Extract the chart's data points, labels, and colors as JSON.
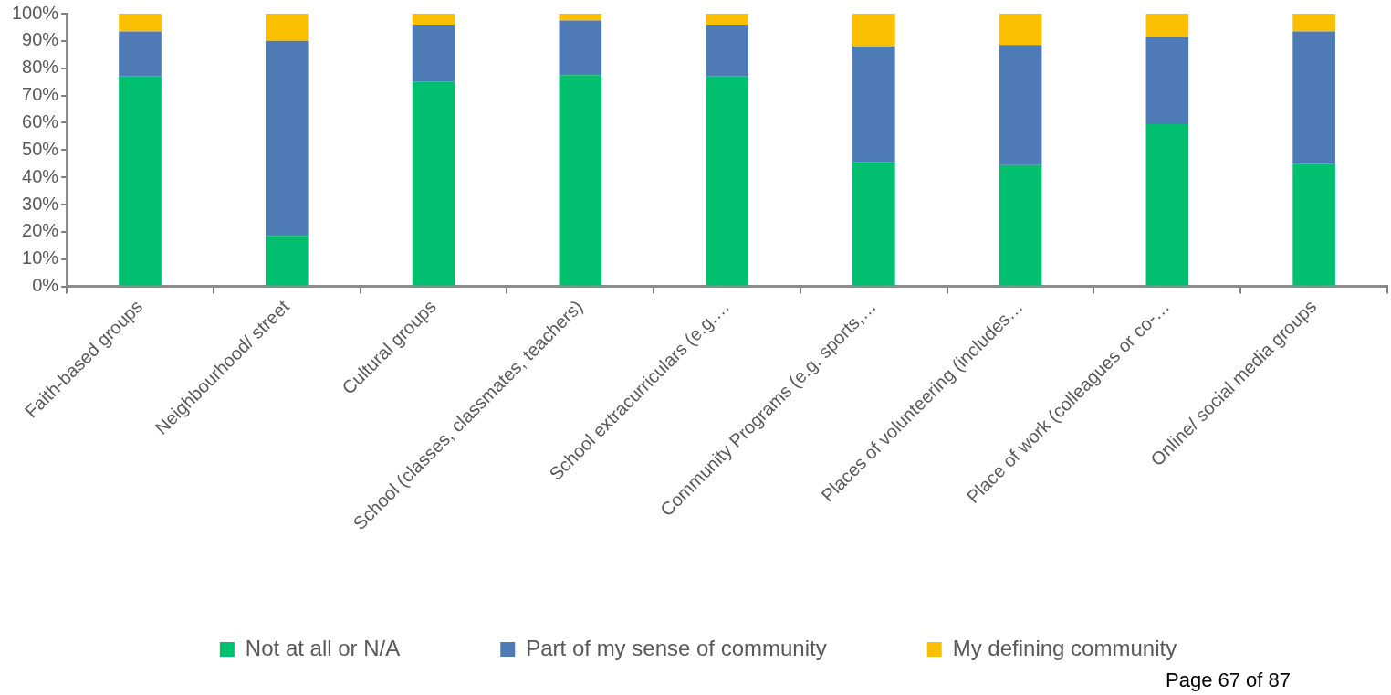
{
  "chart_data": {
    "type": "bar",
    "stacked": true,
    "categories": [
      "Faith-based groups",
      "Neighbourhood/ street",
      "Cultural groups",
      "School (classes, classmates, teachers)",
      "School extracurriculars (e.g.…",
      "Community Programs (e.g. sports,…",
      "Places of volunteering (includes…",
      "Place of work (colleagues or co-…",
      "Online/ social media groups"
    ],
    "series": [
      {
        "name": "Not at all or N/A",
        "color": "#00bf6f",
        "values": [
          77,
          18.5,
          75,
          77.5,
          77,
          45.5,
          44.5,
          59.5,
          45
        ]
      },
      {
        "name": "Part of my sense of community",
        "color": "#4e7ab5",
        "values": [
          16.5,
          71.5,
          21,
          20,
          19,
          42.5,
          44,
          32,
          48.5
        ]
      },
      {
        "name": "My defining community",
        "color": "#f9bf00",
        "values": [
          6.5,
          10,
          4,
          2.5,
          4,
          12,
          11.5,
          8.5,
          6.5
        ]
      }
    ],
    "ylim": [
      0,
      100
    ],
    "yticks": [
      {
        "value": 0,
        "label": "0%"
      },
      {
        "value": 10,
        "label": "10%"
      },
      {
        "value": 20,
        "label": "20%"
      },
      {
        "value": 30,
        "label": "30%"
      },
      {
        "value": 40,
        "label": "40%"
      },
      {
        "value": 50,
        "label": "50%"
      },
      {
        "value": 60,
        "label": "60%"
      },
      {
        "value": 70,
        "label": "70%"
      },
      {
        "value": 80,
        "label": "80%"
      },
      {
        "value": 90,
        "label": "90%"
      },
      {
        "value": 100,
        "label": "100%"
      }
    ],
    "grid": false,
    "legend": "bottom",
    "annotations": [
      "Page 67 of 87"
    ]
  }
}
